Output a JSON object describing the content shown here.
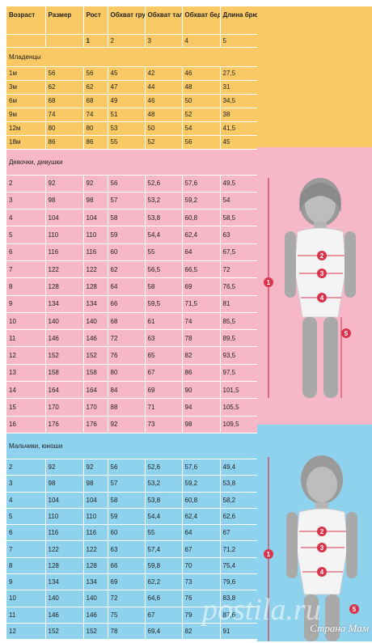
{
  "headers": [
    "Возраст",
    "Размер",
    "Рост",
    "Обхват груди",
    "Обхват талии",
    "Обхват бедер",
    "Длина брюк"
  ],
  "number_row": [
    "",
    "",
    "1",
    "2",
    "3",
    "4",
    "5"
  ],
  "sections": [
    {
      "title": "Младенцы",
      "color": "orange",
      "rows": [
        [
          "1м",
          "56",
          "56",
          "45",
          "42",
          "46",
          "27,5"
        ],
        [
          "3м",
          "62",
          "62",
          "47",
          "44",
          "48",
          "31"
        ],
        [
          "6м",
          "68",
          "68",
          "49",
          "46",
          "50",
          "34,5"
        ],
        [
          "9м",
          "74",
          "74",
          "51",
          "48",
          "52",
          "38"
        ],
        [
          "12м",
          "80",
          "80",
          "53",
          "50",
          "54",
          "41,5"
        ],
        [
          "18м",
          "86",
          "86",
          "55",
          "52",
          "56",
          "45"
        ]
      ]
    },
    {
      "title": "Девочки, девушки",
      "color": "pink",
      "rows": [
        [
          "2",
          "92",
          "92",
          "56",
          "52,6",
          "57,6",
          "49,5"
        ],
        [
          "3",
          "98",
          "98",
          "57",
          "53,2",
          "59,2",
          "54"
        ],
        [
          "4",
          "104",
          "104",
          "58",
          "53,8",
          "60,8",
          "58,5"
        ],
        [
          "5",
          "110",
          "110",
          "59",
          "54,4",
          "62,4",
          "63"
        ],
        [
          "6",
          "116",
          "116",
          "60",
          "55",
          "64",
          "67,5"
        ],
        [
          "7",
          "122",
          "122",
          "62",
          "56,5",
          "66,5",
          "72"
        ],
        [
          "8",
          "128",
          "128",
          "64",
          "58",
          "69",
          "76,5"
        ],
        [
          "9",
          "134",
          "134",
          "66",
          "59,5",
          "71,5",
          "81"
        ],
        [
          "10",
          "140",
          "140",
          "68",
          "61",
          "74",
          "85,5"
        ],
        [
          "11",
          "146",
          "146",
          "72",
          "63",
          "78",
          "89,5"
        ],
        [
          "12",
          "152",
          "152",
          "76",
          "65",
          "82",
          "93,5"
        ],
        [
          "13",
          "158",
          "158",
          "80",
          "67",
          "86",
          "97,5"
        ],
        [
          "14",
          "164",
          "164",
          "84",
          "69",
          "90",
          "101,5"
        ],
        [
          "15",
          "170",
          "170",
          "88",
          "71",
          "94",
          "105,5"
        ],
        [
          "16",
          "176",
          "176",
          "92",
          "73",
          "98",
          "109,5"
        ]
      ]
    },
    {
      "title": "Мальчики, юноши",
      "color": "blue",
      "rows": [
        [
          "2",
          "92",
          "92",
          "56",
          "52,6",
          "57,6",
          "49,4"
        ],
        [
          "3",
          "98",
          "98",
          "57",
          "53,2",
          "59,2",
          "53,8"
        ],
        [
          "4",
          "104",
          "104",
          "58",
          "53,8",
          "60,8",
          "58,2"
        ],
        [
          "5",
          "110",
          "110",
          "59",
          "54,4",
          "62,4",
          "62,6"
        ],
        [
          "6",
          "116",
          "116",
          "60",
          "55",
          "64",
          "67"
        ],
        [
          "7",
          "122",
          "122",
          "63",
          "57,4",
          "67",
          "71,2"
        ],
        [
          "8",
          "128",
          "128",
          "66",
          "59,8",
          "70",
          "75,4"
        ],
        [
          "9",
          "134",
          "134",
          "69",
          "62,2",
          "73",
          "79,6"
        ],
        [
          "10",
          "140",
          "140",
          "72",
          "64,6",
          "76",
          "83,8"
        ],
        [
          "11",
          "146",
          "146",
          "75",
          "67",
          "79",
          "87,6"
        ],
        [
          "12",
          "152",
          "152",
          "78",
          "69,4",
          "82",
          "91"
        ]
      ]
    }
  ],
  "markers": [
    "1",
    "2",
    "3",
    "4",
    "5"
  ],
  "watermark": "Страна Мам",
  "watermark_bg": "postila.ru"
}
